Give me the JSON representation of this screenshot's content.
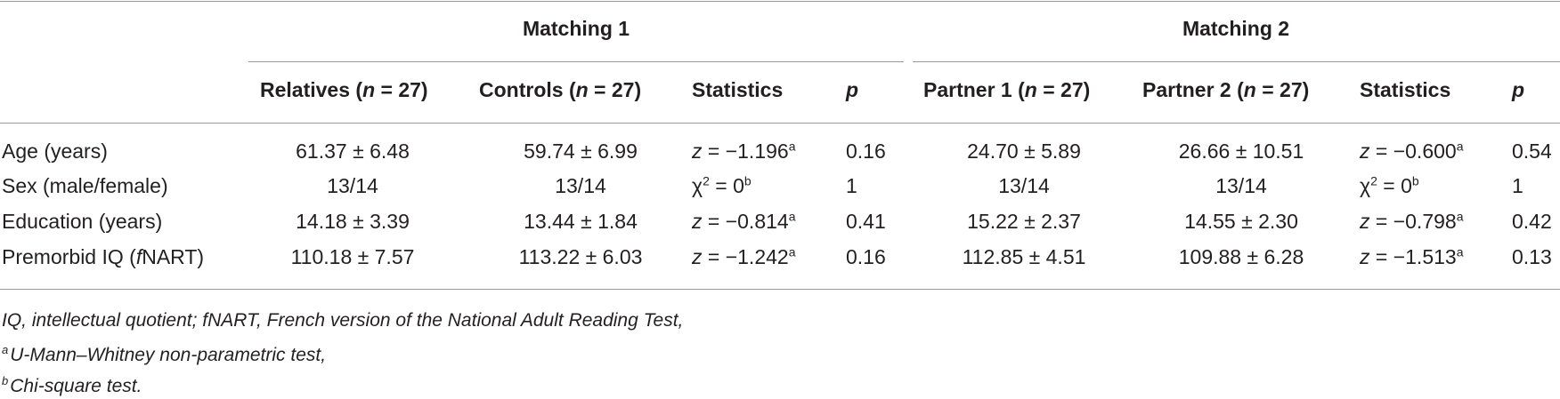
{
  "table": {
    "group_headers": [
      "Matching 1",
      "Matching 2"
    ],
    "column_headers": [
      {
        "label": "Relatives (",
        "n": "n",
        "rest": " = 27)"
      },
      {
        "label": "Controls (",
        "n": "n",
        "rest": " = 27)"
      },
      {
        "label": "Statistics"
      },
      {
        "label": "p"
      },
      {
        "label": "Partner 1 (",
        "n": "n",
        "rest": " = 27)"
      },
      {
        "label": "Partner 2 (",
        "n": "n",
        "rest": " = 27)"
      },
      {
        "label": "Statistics"
      },
      {
        "label": "p"
      }
    ],
    "rows": [
      {
        "label": "Age (years)",
        "cells": [
          "61.37 ± 6.48",
          "59.74 ± 6.99"
        ],
        "stat1": "z = −1.196",
        "stat1_sup": "a",
        "p1": "0.16",
        "cells2": [
          "24.70 ± 5.89",
          "26.66 ± 10.51"
        ],
        "stat2": "z = −0.600",
        "stat2_sup": "a",
        "p2": "0.54"
      },
      {
        "label": "Sex (male/female)",
        "cells": [
          "13/14",
          "13/14"
        ],
        "stat1": "χ2 = 0",
        "stat1_sup": "b",
        "p1": "1",
        "cells2": [
          "13/14",
          "13/14"
        ],
        "stat2": "χ2 = 0",
        "stat2_sup": "b",
        "p2": "1"
      },
      {
        "label": "Education (years)",
        "cells": [
          "14.18 ± 3.39",
          "13.44 ± 1.84"
        ],
        "stat1": "z = −0.814",
        "stat1_sup": "a",
        "p1": "0.41",
        "cells2": [
          "15.22 ± 2.37",
          "14.55 ± 2.30"
        ],
        "stat2": "z = −0.798",
        "stat2_sup": "a",
        "p2": "0.42"
      },
      {
        "label": "Premorbid IQ (fNART)",
        "cells": [
          "110.18 ± 7.57",
          "113.22 ± 6.03"
        ],
        "stat1": "z = −1.242",
        "stat1_sup": "a",
        "p1": "0.16",
        "cells2": [
          "112.85 ± 4.51",
          "109.88 ± 6.28"
        ],
        "stat2": "z = −1.513",
        "stat2_sup": "a",
        "p2": "0.13"
      }
    ]
  },
  "footnotes": {
    "line1": "IQ, intellectual quotient; fNART, French version of the National Adult Reading Test,",
    "line2_mark": "a",
    "line2": "U-Mann–Whitney non-parametric test,",
    "line3_mark": "b",
    "line3": "Chi-square test."
  }
}
